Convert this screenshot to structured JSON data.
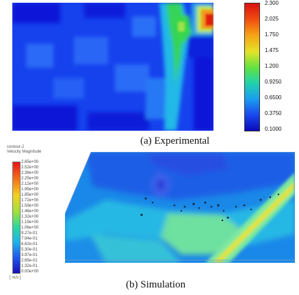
{
  "experimental": {
    "caption": "(a) Experimental",
    "colorbar_ticks": [
      "2.300",
      "2.025",
      "1.750",
      "1.475",
      "1.200",
      "0.9250",
      "0.6500",
      "0.3750",
      "0.1000"
    ],
    "colors": {
      "deep": "#0a16d8",
      "mid": "#1c4cf2",
      "cyan": "#25b6e8",
      "green": "#2fdc55",
      "red": "#e01a10"
    }
  },
  "simulation": {
    "title_line1": "contour-2",
    "title_line2": "Velocity Magnitude",
    "caption": "(b) Simulation",
    "unit": "[ m/s ]",
    "colorbar_ticks": [
      "2.65e+00",
      "2.52e+00",
      "2.38e+00",
      "2.25e+00",
      "2.12e+00",
      "1.99e+00",
      "1.85e+00",
      "1.72e+00",
      "1.59e+00",
      "1.46e+00",
      "1.32e+00",
      "1.19e+00",
      "1.06e+00",
      "9.27e-01",
      "7.94e-01",
      "6.62e-01",
      "5.30e-01",
      "3.97e-01",
      "2.65e-01",
      "1.32e-01",
      "0.00e+00"
    ]
  }
}
